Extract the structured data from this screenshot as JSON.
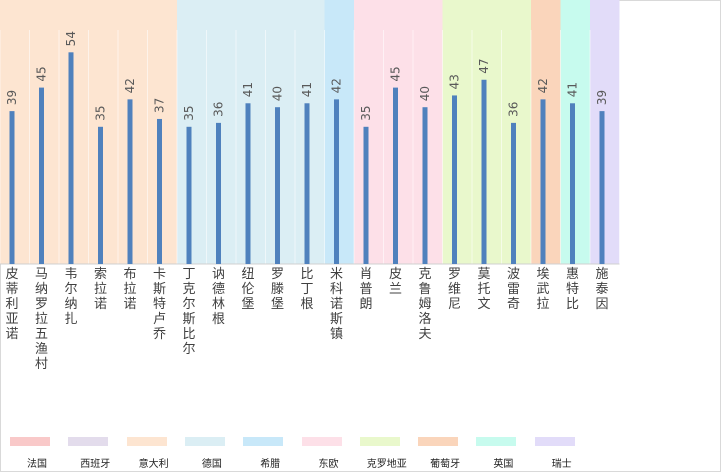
{
  "chart_data": {
    "type": "bar",
    "title": "",
    "xlabel": "",
    "ylabel": "",
    "ylim": [
      0,
      58
    ],
    "bar_color": "#4f81bd",
    "categories": [
      "皮蒂利亚诺",
      "马纳罗拉 五渔村",
      "韦尔纳扎",
      "索拉诺",
      "布拉诺",
      "卡斯特卢乔",
      "丁克尔斯比尔",
      "讷德林根",
      "纽伦堡",
      "罗滕堡",
      "比丁根",
      "米科诺斯镇",
      "肖普朗",
      "皮兰",
      "克鲁姆洛夫",
      "罗维尼",
      "莫托文",
      "波雷奇",
      "埃武拉",
      "惠特比",
      "施泰因"
    ],
    "values": [
      39,
      45,
      54,
      35,
      42,
      37,
      35,
      36,
      41,
      40,
      41,
      42,
      35,
      45,
      40,
      43,
      47,
      36,
      42,
      41,
      39
    ],
    "groups": [
      {
        "name": "意大利",
        "color": "#fde5d1",
        "start": 0,
        "count": 6
      },
      {
        "name": "德国",
        "color": "#dbeef4",
        "start": 6,
        "count": 5
      },
      {
        "name": "希腊",
        "color": "#c8e8f9",
        "start": 11,
        "count": 1
      },
      {
        "name": "东欧",
        "color": "#fde0e8",
        "start": 12,
        "count": 3
      },
      {
        "name": "克罗地亚",
        "color": "#e9f8cc",
        "start": 15,
        "count": 3
      },
      {
        "name": "葡萄牙",
        "color": "#fad5bb",
        "start": 18,
        "count": 1
      },
      {
        "name": "英国",
        "color": "#c7fbee",
        "start": 19,
        "count": 1
      },
      {
        "name": "瑞士",
        "color": "#e2dcf9",
        "start": 20,
        "count": 1
      }
    ],
    "legend": [
      {
        "label": "法国",
        "color": "#f9c9c9"
      },
      {
        "label": "西班牙",
        "color": "#e3dcec"
      },
      {
        "label": "意大利",
        "color": "#fde5d1"
      },
      {
        "label": "德国",
        "color": "#dbeef4"
      },
      {
        "label": "希腊",
        "color": "#c8e8f9"
      },
      {
        "label": "东欧",
        "color": "#fde0e8"
      },
      {
        "label": "克罗地亚",
        "color": "#e9f8cc"
      },
      {
        "label": "葡萄牙",
        "color": "#fad5bb"
      },
      {
        "label": "英国",
        "color": "#c7fbee"
      },
      {
        "label": "瑞士",
        "color": "#e2dcf9"
      }
    ]
  }
}
